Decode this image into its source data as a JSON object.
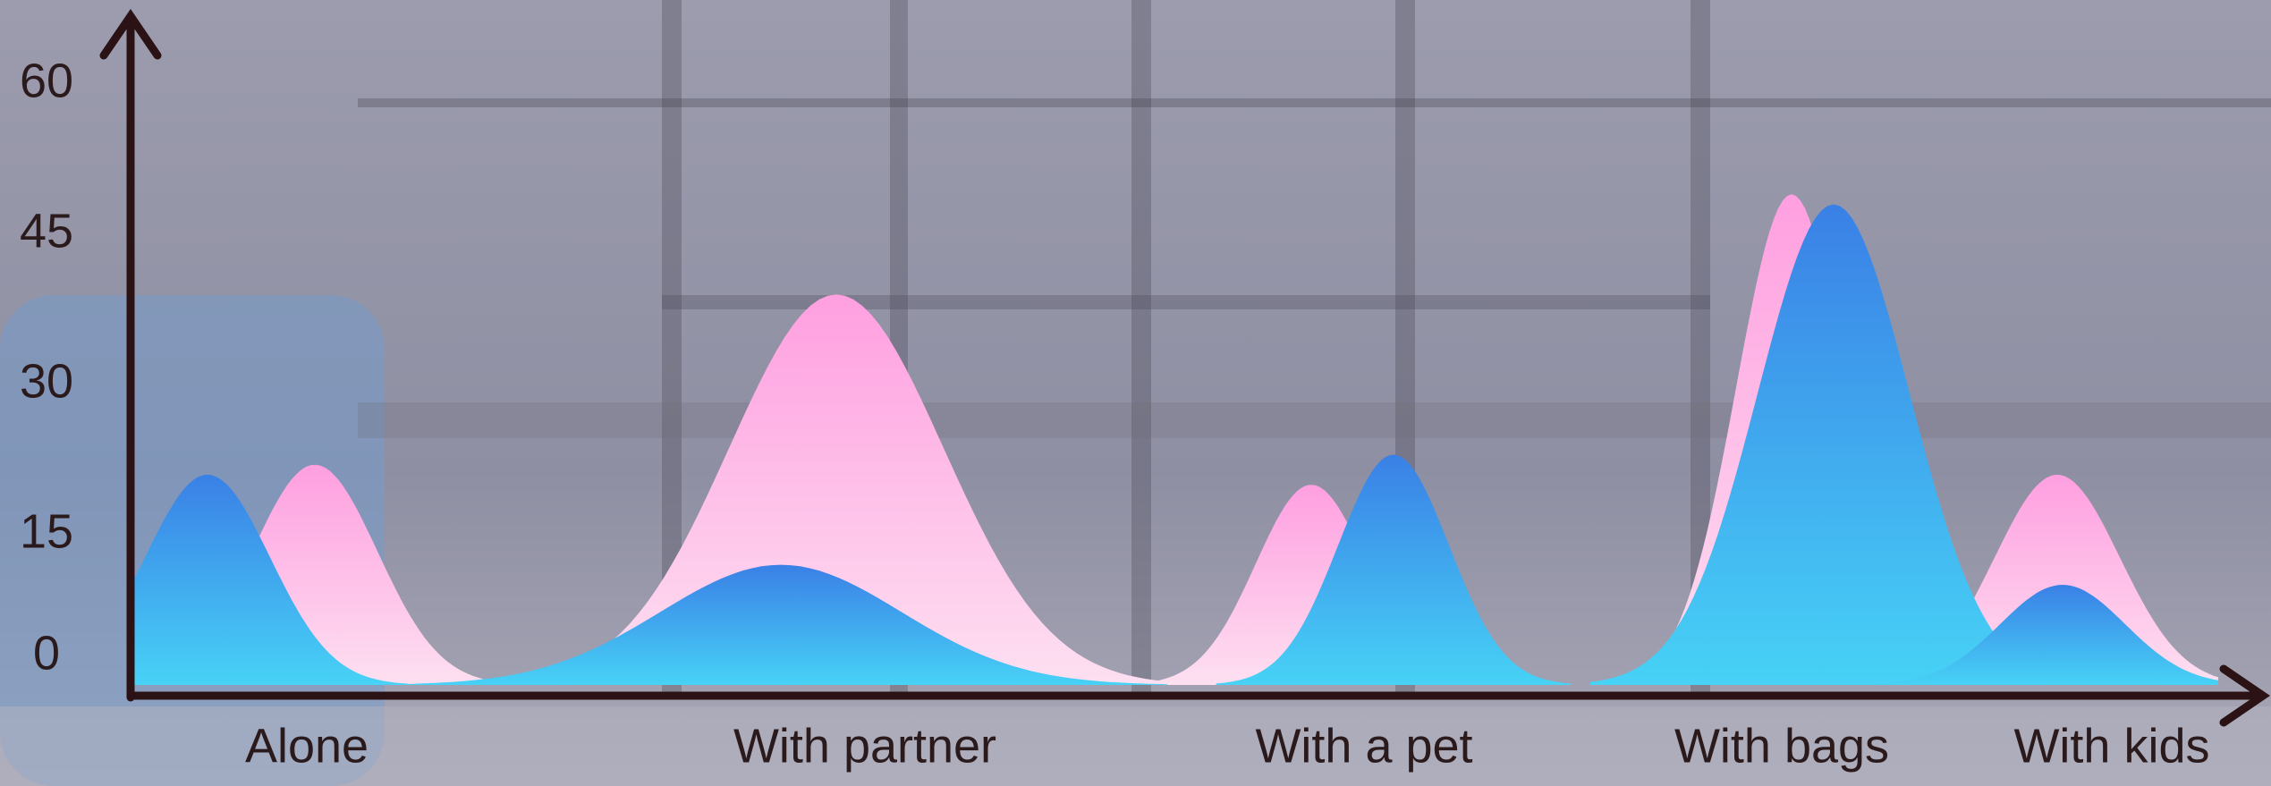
{
  "chart_data": {
    "type": "area",
    "categories": [
      "Alone",
      "With partner",
      "With a pet",
      "With bags",
      "With kids"
    ],
    "series": [
      {
        "name": "Pink",
        "color": "#ff9fe0",
        "values": [
          22,
          39,
          20,
          49,
          21
        ]
      },
      {
        "name": "Blue",
        "color": "#3a80e6",
        "values": [
          21,
          12,
          23,
          48,
          10
        ]
      }
    ],
    "ylim": [
      0,
      66
    ],
    "yticks": [
      0,
      15,
      30,
      45,
      60
    ]
  }
}
